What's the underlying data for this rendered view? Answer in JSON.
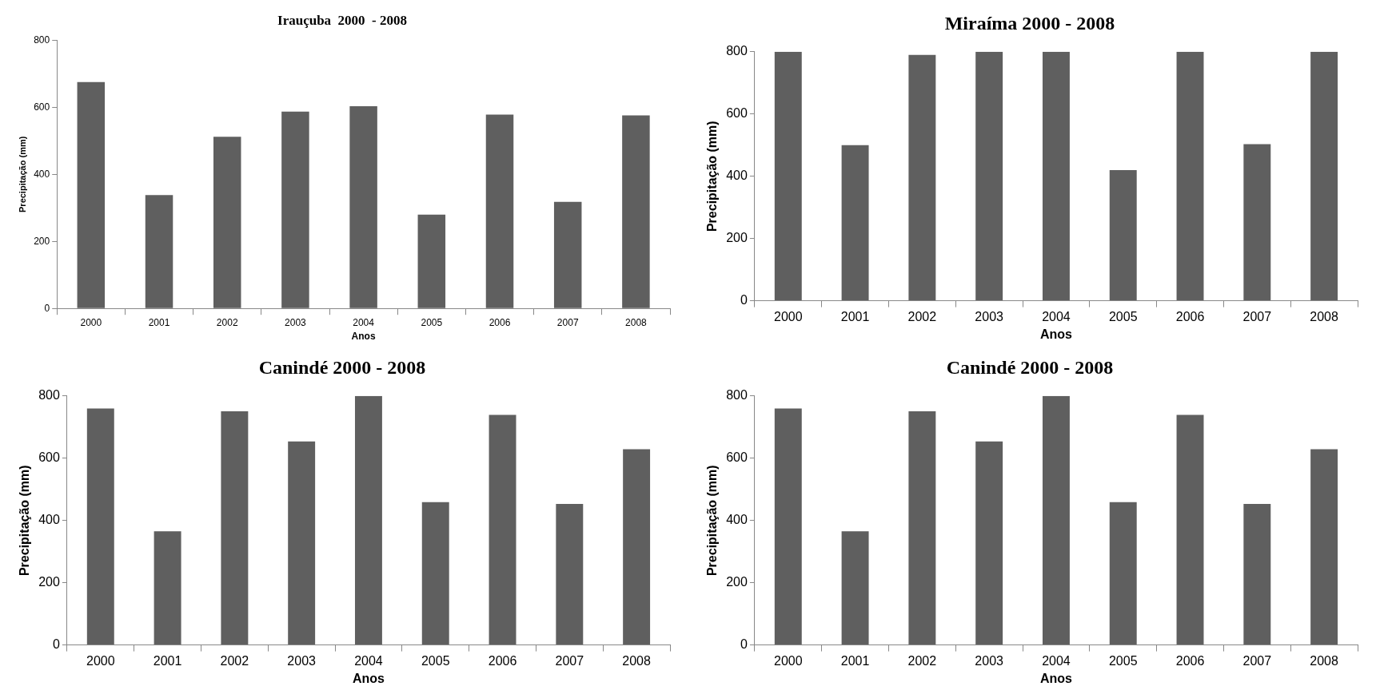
{
  "chart_data": [
    {
      "type": "bar",
      "title": "Irauçuba  2000  - 2008",
      "xlabel": "Anos",
      "ylabel": "Precipitação (mm)",
      "categories": [
        "2000",
        "2001",
        "2002",
        "2003",
        "2004",
        "2005",
        "2006",
        "2007",
        "2008"
      ],
      "series": [
        {
          "color": "#5f5f5f",
          "values": [
            675,
            338,
            512,
            587,
            603,
            280,
            578,
            318,
            576
          ]
        }
      ],
      "ylim": [
        0,
        800
      ],
      "yticks": [
        0,
        200,
        400,
        600,
        800
      ],
      "grid": false,
      "legend": false
    },
    {
      "type": "bar",
      "title": "Miraíma 2000 - 2008",
      "xlabel": "Anos",
      "ylabel": "Precipitação (mm)",
      "categories": [
        "2000",
        "2001",
        "2002",
        "2003",
        "2004",
        "2005",
        "2006",
        "2007",
        "2008"
      ],
      "series": [
        {
          "color": "#5f5f5f",
          "values": [
            800,
            500,
            790,
            800,
            800,
            420,
            800,
            503,
            800
          ]
        }
      ],
      "ylim": [
        0,
        800
      ],
      "yticks": [
        0,
        200,
        400,
        600,
        800
      ],
      "grid": false,
      "legend": false
    },
    {
      "type": "bar",
      "title": "Canindé 2000 - 2008",
      "xlabel": "Anos",
      "ylabel": "Precipitação (mm)",
      "categories": [
        "2000",
        "2001",
        "2002",
        "2003",
        "2004",
        "2005",
        "2006",
        "2007",
        "2008"
      ],
      "series": [
        {
          "color": "#5f5f5f",
          "values": [
            760,
            365,
            751,
            654,
            800,
            459,
            739,
            453,
            629
          ]
        }
      ],
      "ylim": [
        0,
        800
      ],
      "yticks": [
        0,
        200,
        400,
        600,
        800
      ],
      "grid": false,
      "legend": false
    },
    {
      "type": "bar",
      "title": "Canindé 2000 - 2008",
      "xlabel": "Anos",
      "ylabel": "Precipitação (mm)",
      "categories": [
        "2000",
        "2001",
        "2002",
        "2003",
        "2004",
        "2005",
        "2006",
        "2007",
        "2008"
      ],
      "series": [
        {
          "color": "#5f5f5f",
          "values": [
            760,
            365,
            751,
            654,
            800,
            459,
            739,
            453,
            629
          ]
        }
      ],
      "ylim": [
        0,
        800
      ],
      "yticks": [
        0,
        200,
        400,
        600,
        800
      ],
      "grid": false,
      "legend": false
    }
  ]
}
